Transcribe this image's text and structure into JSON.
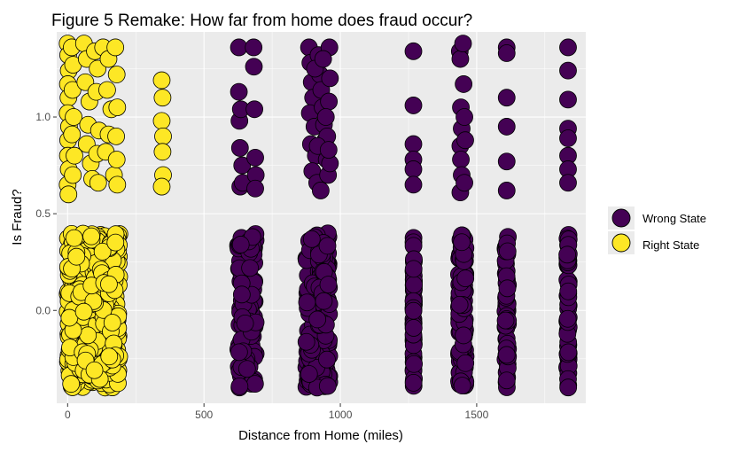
{
  "chart_data": {
    "type": "scatter",
    "title": "Figure 5 Remake: How far from home does fraud occur?",
    "xlabel": "Distance from Home (miles)",
    "ylabel": "Is Fraud?",
    "xlim": [
      -40,
      1900
    ],
    "ylim": [
      -0.48,
      1.44
    ],
    "x_ticks": [
      0,
      500,
      1000,
      1500
    ],
    "y_ticks": [
      0.0,
      0.5,
      1.0
    ],
    "x_tick_labels": [
      "0",
      "500",
      "1000",
      "1500"
    ],
    "y_tick_labels": [
      "0.0",
      "0.5",
      "1.0"
    ],
    "grid": true,
    "jitter": "vertical jitter ±0.4 around 0 and 1",
    "legend_position": "right",
    "series": [
      {
        "name": "Wrong State",
        "color": "#440154",
        "fraud_1": [
          [
            628,
            1.36
          ],
          [
            628,
            1.13
          ],
          [
            630,
            0.98
          ],
          [
            632,
            0.84
          ],
          [
            633,
            0.64
          ],
          [
            635,
            1.04
          ],
          [
            640,
            0.75
          ],
          [
            642,
            0.66
          ],
          [
            682,
            1.36
          ],
          [
            683,
            1.26
          ],
          [
            685,
            1.04
          ],
          [
            688,
            0.79
          ],
          [
            690,
            0.7
          ],
          [
            688,
            0.63
          ],
          [
            885,
            1.36
          ],
          [
            890,
            1.28
          ],
          [
            895,
            1.18
          ],
          [
            900,
            1.1
          ],
          [
            888,
            1.02
          ],
          [
            905,
            0.95
          ],
          [
            892,
            0.86
          ],
          [
            910,
            0.8
          ],
          [
            897,
            0.72
          ],
          [
            915,
            0.66
          ],
          [
            920,
            1.32
          ],
          [
            925,
            1.22
          ],
          [
            930,
            1.14
          ],
          [
            935,
            1.05
          ],
          [
            940,
            0.96
          ],
          [
            945,
            0.88
          ],
          [
            950,
            0.78
          ],
          [
            955,
            0.7
          ],
          [
            928,
            0.62
          ],
          [
            960,
            1.36
          ],
          [
            962,
            1.2
          ],
          [
            958,
            1.08
          ],
          [
            952,
            0.9
          ],
          [
            962,
            0.76
          ],
          [
            907,
            1.25
          ],
          [
            937,
            1.3
          ],
          [
            947,
            1.0
          ],
          [
            917,
            0.85
          ],
          [
            957,
            0.83
          ],
          [
            1268,
            1.34
          ],
          [
            1268,
            1.06
          ],
          [
            1268,
            0.86
          ],
          [
            1268,
            0.78
          ],
          [
            1268,
            0.73
          ],
          [
            1268,
            0.65
          ],
          [
            1438,
            1.34
          ],
          [
            1440,
            1.3
          ],
          [
            1442,
            1.05
          ],
          [
            1445,
            0.94
          ],
          [
            1440,
            0.85
          ],
          [
            1442,
            0.78
          ],
          [
            1445,
            0.7
          ],
          [
            1440,
            0.61
          ],
          [
            1450,
            1.38
          ],
          [
            1452,
            1.17
          ],
          [
            1455,
            1.0
          ],
          [
            1458,
            0.88
          ],
          [
            1455,
            0.66
          ],
          [
            1610,
            1.36
          ],
          [
            1610,
            1.33
          ],
          [
            1610,
            1.1
          ],
          [
            1610,
            0.95
          ],
          [
            1610,
            0.77
          ],
          [
            1610,
            0.62
          ],
          [
            1835,
            1.36
          ],
          [
            1835,
            1.24
          ],
          [
            1835,
            1.09
          ],
          [
            1835,
            0.94
          ],
          [
            1835,
            0.89
          ],
          [
            1835,
            0.8
          ],
          [
            1835,
            0.73
          ],
          [
            1835,
            0.66
          ]
        ],
        "fraud_0_clusters": [
          {
            "x_min": 625,
            "x_max": 690,
            "n": 120
          },
          {
            "x_min": 875,
            "x_max": 960,
            "n": 260
          },
          {
            "x_min": 1268,
            "x_max": 1270,
            "n": 50
          },
          {
            "x_min": 1435,
            "x_max": 1460,
            "n": 110
          },
          {
            "x_min": 1605,
            "x_max": 1615,
            "n": 55
          },
          {
            "x_min": 1832,
            "x_max": 1838,
            "n": 55
          }
        ]
      },
      {
        "name": "Right State",
        "color": "#fde725",
        "fraud_1": [
          [
            0,
            1.38
          ],
          [
            2,
            1.32
          ],
          [
            4,
            1.24
          ],
          [
            1,
            1.17
          ],
          [
            3,
            1.1
          ],
          [
            0,
            1.02
          ],
          [
            5,
            0.95
          ],
          [
            2,
            0.88
          ],
          [
            1,
            0.8
          ],
          [
            4,
            0.73
          ],
          [
            0,
            0.65
          ],
          [
            3,
            0.6
          ],
          [
            15,
            1.36
          ],
          [
            20,
            1.27
          ],
          [
            18,
            1.14
          ],
          [
            22,
            1.0
          ],
          [
            16,
            0.91
          ],
          [
            25,
            0.8
          ],
          [
            19,
            0.7
          ],
          [
            60,
            1.38
          ],
          [
            70,
            1.3
          ],
          [
            65,
            1.18
          ],
          [
            80,
            1.08
          ],
          [
            75,
            0.96
          ],
          [
            70,
            0.86
          ],
          [
            85,
            0.76
          ],
          [
            90,
            0.68
          ],
          [
            100,
            1.34
          ],
          [
            110,
            1.25
          ],
          [
            105,
            1.13
          ],
          [
            115,
            0.93
          ],
          [
            108,
            0.81
          ],
          [
            112,
            0.66
          ],
          [
            130,
            1.36
          ],
          [
            150,
            1.3
          ],
          [
            145,
            1.14
          ],
          [
            160,
            1.04
          ],
          [
            150,
            0.91
          ],
          [
            140,
            0.82
          ],
          [
            170,
            0.7
          ],
          [
            175,
            1.36
          ],
          [
            180,
            1.22
          ],
          [
            182,
            1.05
          ],
          [
            178,
            0.9
          ],
          [
            180,
            0.78
          ],
          [
            182,
            0.65
          ],
          [
            345,
            1.19
          ],
          [
            348,
            1.1
          ],
          [
            345,
            0.98
          ],
          [
            350,
            0.9
          ],
          [
            348,
            0.82
          ],
          [
            350,
            0.7
          ],
          [
            345,
            0.64
          ]
        ],
        "fraud_0_clusters": [
          {
            "x_min": 0,
            "x_max": 190,
            "n": 520
          }
        ]
      }
    ]
  }
}
